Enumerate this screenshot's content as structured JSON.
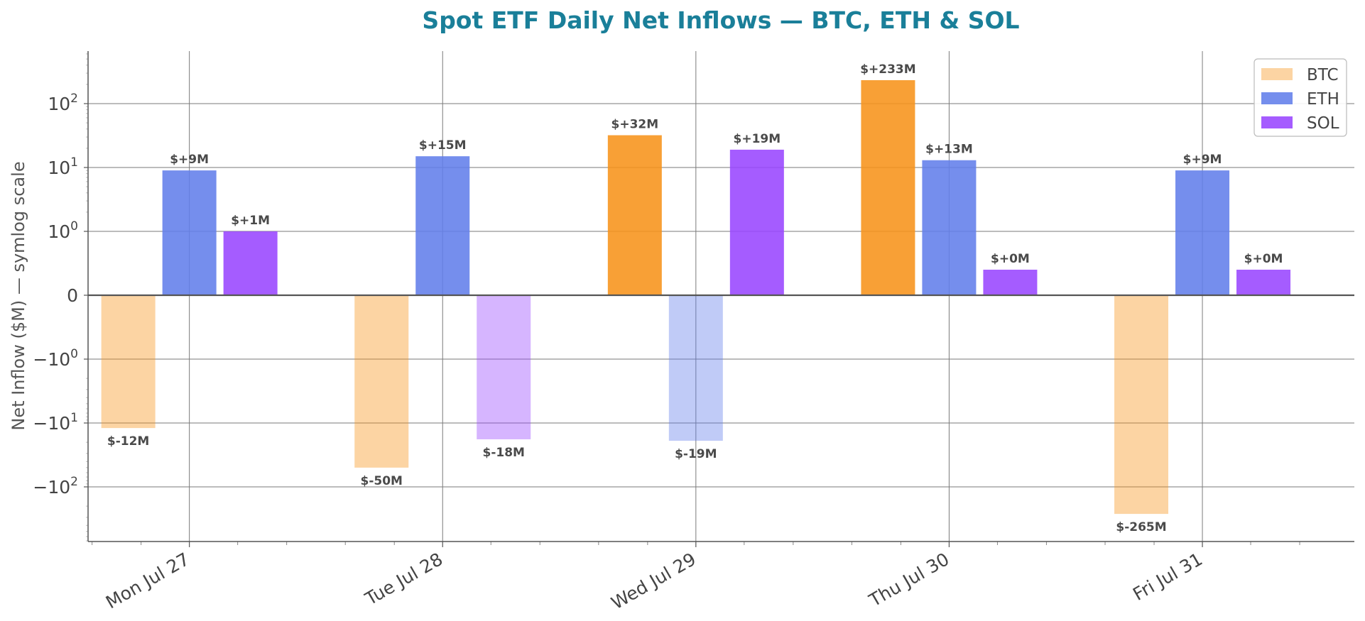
{
  "chart_data": {
    "type": "bar",
    "title": "Spot ETF Daily Net Inflows — BTC, ETH & SOL",
    "ylabel": "Net Inflow ($M) — symlog scale",
    "xlabel": "",
    "yscale": "symlog",
    "ylim": [
      -700,
      500
    ],
    "yticks": [
      {
        "value": 100,
        "base": "10",
        "exp": "2",
        "sign": ""
      },
      {
        "value": 10,
        "base": "10",
        "exp": "1",
        "sign": ""
      },
      {
        "value": 1,
        "base": "10",
        "exp": "0",
        "sign": ""
      },
      {
        "value": 0,
        "base": "0",
        "exp": "",
        "sign": ""
      },
      {
        "value": -1,
        "base": "10",
        "exp": "0",
        "sign": "−"
      },
      {
        "value": -10,
        "base": "10",
        "exp": "1",
        "sign": "−"
      },
      {
        "value": -100,
        "base": "10",
        "exp": "2",
        "sign": "−"
      }
    ],
    "grid": true,
    "legend_position": "top-right",
    "title_color": "#1a7f99",
    "categories": [
      "Mon Jul 27",
      "Tue Jul 28",
      "Wed Jul 29",
      "Thu Jul 30",
      "Fri Jul 31"
    ],
    "series": [
      {
        "name": "BTC",
        "color": "#f7931a",
        "values": [
          -12,
          -50,
          32,
          233,
          -265
        ],
        "labels": [
          "$-12M",
          "$-50M",
          "$+32M",
          "$+233M",
          "$-265M"
        ]
      },
      {
        "name": "ETH",
        "color": "#627eea",
        "values": [
          9,
          15,
          -19,
          13,
          9
        ],
        "labels": [
          "$+9M",
          "$+15M",
          "$-19M",
          "$+13M",
          "$+9M"
        ]
      },
      {
        "name": "SOL",
        "color": "#9945ff",
        "values": [
          1,
          -18,
          19,
          0.4,
          0.4
        ],
        "labels": [
          "$+1M",
          "$-18M",
          "$+19M",
          "$+0M",
          "$+0M"
        ]
      }
    ]
  }
}
